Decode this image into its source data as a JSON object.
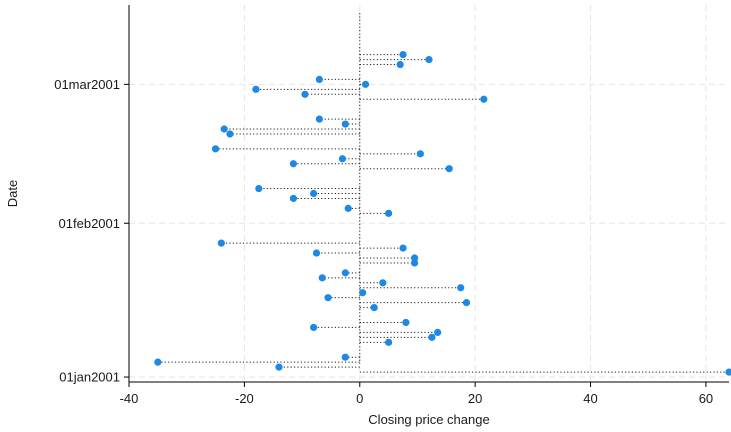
{
  "chart_data": {
    "type": "dropline",
    "xlabel": "Closing price change",
    "ylabel": "Date",
    "xlim": [
      -40,
      64
    ],
    "xticks": [
      -40,
      -20,
      0,
      20,
      40,
      60
    ],
    "ylim": [
      "2000-12-31",
      "2001-03-17"
    ],
    "yticks": [
      {
        "date": "2001-01-01",
        "label": "01jan2001"
      },
      {
        "date": "2001-02-01",
        "label": "01feb2001"
      },
      {
        "date": "2001-03-01",
        "label": "01mar2001"
      }
    ],
    "grid": true,
    "baseline": 0,
    "marker_color": "#1e88e5",
    "points": [
      {
        "date": "2001-01-02",
        "value": 64
      },
      {
        "date": "2001-01-03",
        "value": -14
      },
      {
        "date": "2001-01-04",
        "value": -35
      },
      {
        "date": "2001-01-05",
        "value": -2.5
      },
      {
        "date": "2001-01-08",
        "value": 5
      },
      {
        "date": "2001-01-09",
        "value": 12.5
      },
      {
        "date": "2001-01-10",
        "value": 13.5
      },
      {
        "date": "2001-01-11",
        "value": -8
      },
      {
        "date": "2001-01-12",
        "value": 8
      },
      {
        "date": "2001-01-15",
        "value": 2.5
      },
      {
        "date": "2001-01-16",
        "value": 18.5
      },
      {
        "date": "2001-01-17",
        "value": -5.5
      },
      {
        "date": "2001-01-18",
        "value": 0.5
      },
      {
        "date": "2001-01-19",
        "value": 17.5
      },
      {
        "date": "2001-01-20",
        "value": 4
      },
      {
        "date": "2001-01-21",
        "value": -6.5
      },
      {
        "date": "2001-01-22",
        "value": -2.5
      },
      {
        "date": "2001-01-24",
        "value": 9.5
      },
      {
        "date": "2001-01-25",
        "value": 9.5
      },
      {
        "date": "2001-01-26",
        "value": -7.5
      },
      {
        "date": "2001-01-27",
        "value": 7.5
      },
      {
        "date": "2001-01-28",
        "value": -24
      },
      {
        "date": "2001-02-03",
        "value": 5
      },
      {
        "date": "2001-02-04",
        "value": -2
      },
      {
        "date": "2001-02-06",
        "value": -11.5
      },
      {
        "date": "2001-02-07",
        "value": -8
      },
      {
        "date": "2001-02-08",
        "value": -17.5
      },
      {
        "date": "2001-02-12",
        "value": 15.5
      },
      {
        "date": "2001-02-13",
        "value": -11.5
      },
      {
        "date": "2001-02-14",
        "value": -3
      },
      {
        "date": "2001-02-15",
        "value": 10.5
      },
      {
        "date": "2001-02-16",
        "value": -25
      },
      {
        "date": "2001-02-19",
        "value": -22.5
      },
      {
        "date": "2001-02-20",
        "value": -23.5
      },
      {
        "date": "2001-02-21",
        "value": -2.5
      },
      {
        "date": "2001-02-22",
        "value": -7
      },
      {
        "date": "2001-02-26",
        "value": 21.5
      },
      {
        "date": "2001-02-27",
        "value": -9.5
      },
      {
        "date": "2001-02-28",
        "value": -18
      },
      {
        "date": "2001-03-01",
        "value": 1
      },
      {
        "date": "2001-03-02",
        "value": -7
      },
      {
        "date": "2001-03-05",
        "value": 7
      },
      {
        "date": "2001-03-06",
        "value": 12
      },
      {
        "date": "2001-03-07",
        "value": 7.5
      }
    ]
  }
}
